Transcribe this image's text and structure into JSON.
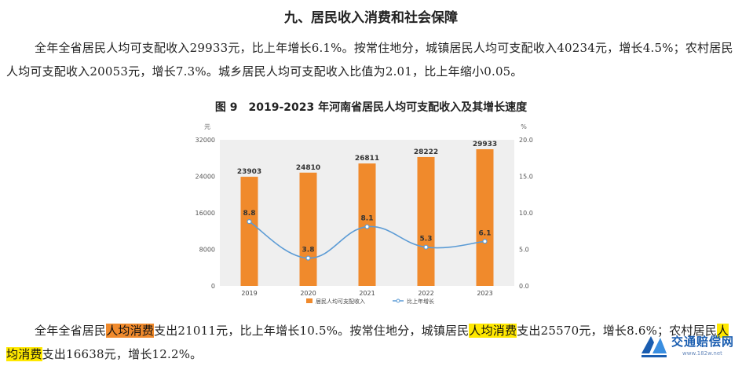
{
  "section_title": "九、居民收入消费和社会保障",
  "paragraph1": {
    "text": "全年全省居民人均可支配收入29933元，比上年增长6.1%。按常住地分，城镇居民人均可支配收入40234元，增长4.5%；农村居民人均可支配收入20053元，增长7.3%。城乡居民人均可支配收入比值为2.01，比上年缩小0.05。"
  },
  "figure_caption": "图 9　2019-2023 年河南省居民人均可支配收入及其增长速度",
  "chart_data": {
    "type": "bar+line",
    "title": "图 9　2019-2023 年河南省居民人均可支配收入及其增长速度",
    "categories": [
      "2019",
      "2020",
      "2021",
      "2022",
      "2023"
    ],
    "series": [
      {
        "name": "居民人均可支配收入",
        "type": "bar",
        "axis": "left",
        "values": [
          23903,
          24810,
          26811,
          28222,
          29933
        ],
        "color": "#f08a2c"
      },
      {
        "name": "比上年增长",
        "type": "line",
        "axis": "right",
        "values": [
          8.8,
          3.8,
          8.1,
          5.3,
          6.1
        ],
        "color": "#5b9bd5"
      }
    ],
    "left_axis": {
      "unit": "元",
      "ticks": [
        "0",
        "8000",
        "16000",
        "24000",
        "32000"
      ],
      "ylim": [
        0,
        32000
      ]
    },
    "right_axis": {
      "unit": "%",
      "ticks": [
        "0.0",
        "5.0",
        "10.0",
        "15.0",
        "20.0"
      ],
      "ylim": [
        0,
        20
      ]
    },
    "legend_position": "bottom",
    "background": "#efefef"
  },
  "paragraph2": {
    "part1": "全年全省居民",
    "hl1": "人均消费",
    "part2": "支出21011元，比上年增长10.5%。按常住地分，城镇居民",
    "hl2": "人均消费",
    "part3": "支出25570元，增长8.6%；农村居民",
    "hl3": "人均消费",
    "part4": "支出16638元，增长12.2%。"
  },
  "watermark": {
    "name": "交通赔偿网",
    "url": "www.182w.net"
  }
}
